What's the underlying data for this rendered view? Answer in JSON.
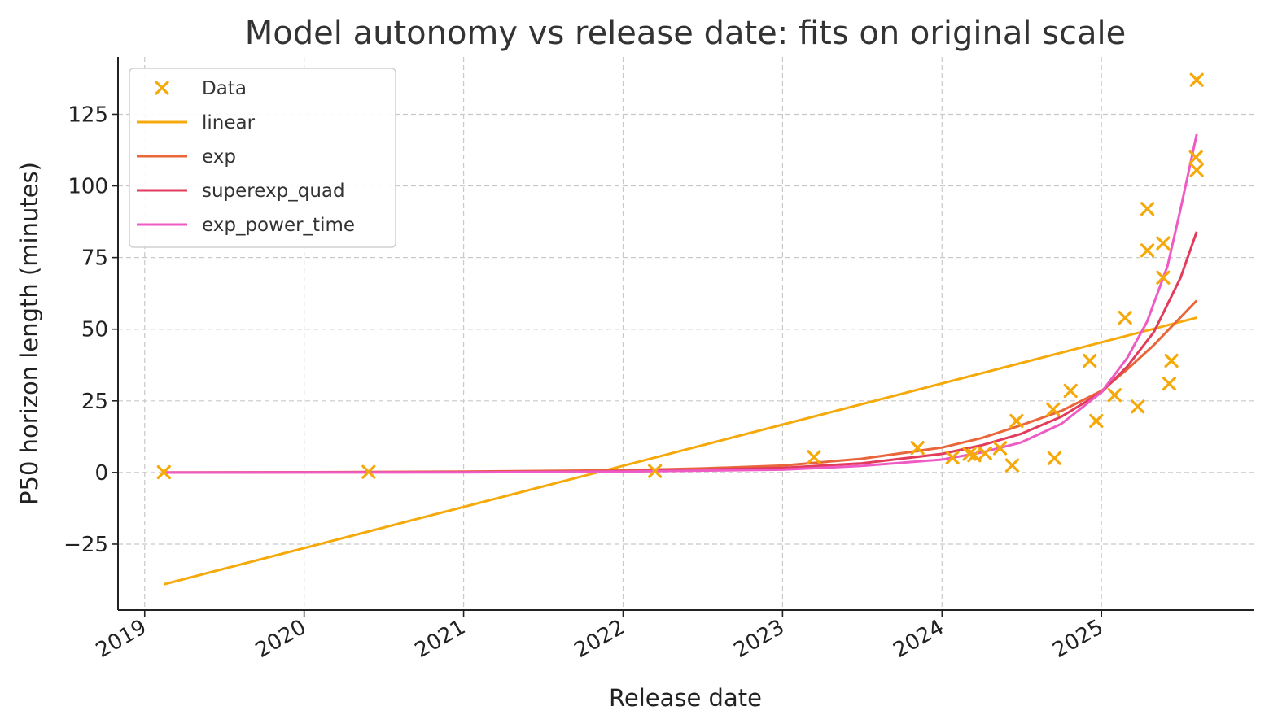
{
  "chart_data": {
    "type": "scatter",
    "title": "Model autonomy vs release date: fits on original scale",
    "xlabel": "Release date",
    "ylabel": "P50 horizon length (minutes)",
    "ylim": [
      -48,
      145
    ],
    "xlim": [
      "2018-11-01",
      "2025-12-15"
    ],
    "x_ticks": [
      {
        "date": "2019-01-01",
        "label": "2019"
      },
      {
        "date": "2020-01-01",
        "label": "2020"
      },
      {
        "date": "2021-01-01",
        "label": "2021"
      },
      {
        "date": "2022-01-01",
        "label": "2022"
      },
      {
        "date": "2023-01-01",
        "label": "2023"
      },
      {
        "date": "2024-01-01",
        "label": "2024"
      },
      {
        "date": "2025-01-01",
        "label": "2025"
      }
    ],
    "y_ticks": [
      {
        "value": -25,
        "label": "−25"
      },
      {
        "value": 0,
        "label": "0"
      },
      {
        "value": 25,
        "label": "25"
      },
      {
        "value": 50,
        "label": "50"
      },
      {
        "value": 75,
        "label": "75"
      },
      {
        "value": 100,
        "label": "100"
      },
      {
        "value": 125,
        "label": "125"
      }
    ],
    "grid": true,
    "legend_position": "top-left",
    "colors": {
      "Data": "#f5a90a",
      "linear": "#f5a90a",
      "exp": "#e8663a",
      "superexp_quad": "#e23c5c",
      "exp_power_time": "#ef5bc4"
    },
    "data_points": {
      "name": "Data",
      "x": [
        "2019-02-14",
        "2020-05-28",
        "2022-03-15",
        "2023-03-14",
        "2023-11-06",
        "2024-01-25",
        "2024-03-04",
        "2024-03-15",
        "2024-04-09",
        "2024-05-13",
        "2024-06-10",
        "2024-06-20",
        "2024-09-12",
        "2024-09-15",
        "2024-10-22",
        "2024-12-05",
        "2024-12-20",
        "2025-01-31",
        "2025-02-24",
        "2025-03-25",
        "2025-04-16",
        "2025-04-16",
        "2025-05-22",
        "2025-05-22",
        "2025-06-05",
        "2025-06-10",
        "2025-08-05",
        "2025-08-07",
        "2025-08-07"
      ],
      "y": [
        0.1,
        0.2,
        0.5,
        5.4,
        8.6,
        5.2,
        6.5,
        6.0,
        6.7,
        8.5,
        2.5,
        18.0,
        22.0,
        5.0,
        28.5,
        39.0,
        18.0,
        27.0,
        54.0,
        23.0,
        92.0,
        77.5,
        80.0,
        68.0,
        31.0,
        39.0,
        110.0,
        137.0,
        105.5
      ]
    },
    "series": [
      {
        "name": "linear",
        "x": [
          "2019-02-14",
          "2025-08-07"
        ],
        "y": [
          -39,
          54
        ]
      },
      {
        "name": "exp",
        "x": [
          "2019-02-14",
          "2020-01-01",
          "2021-01-01",
          "2022-01-01",
          "2022-07-01",
          "2023-01-01",
          "2023-07-01",
          "2024-01-01",
          "2024-04-01",
          "2024-07-01",
          "2024-10-01",
          "2025-01-01",
          "2025-03-01",
          "2025-05-01",
          "2025-08-07"
        ],
        "y": [
          0.0,
          0.1,
          0.3,
          0.8,
          1.4,
          2.4,
          4.8,
          8.7,
          12.0,
          16.5,
          21.5,
          28.5,
          36.0,
          44.5,
          60.0
        ]
      },
      {
        "name": "superexp_quad",
        "x": [
          "2019-02-14",
          "2021-01-01",
          "2022-01-01",
          "2023-01-01",
          "2023-07-01",
          "2024-01-01",
          "2024-04-01",
          "2024-07-01",
          "2024-10-01",
          "2025-01-01",
          "2025-03-01",
          "2025-05-01",
          "2025-07-01",
          "2025-08-07"
        ],
        "y": [
          0.0,
          0.1,
          0.4,
          1.6,
          3.2,
          6.5,
          9.5,
          13.5,
          19.5,
          28.0,
          37.0,
          49.0,
          68.0,
          84.0
        ]
      },
      {
        "name": "exp_power_time",
        "x": [
          "2019-02-14",
          "2021-01-01",
          "2022-01-01",
          "2023-01-01",
          "2023-07-01",
          "2024-01-01",
          "2024-04-01",
          "2024-07-01",
          "2024-10-01",
          "2025-01-01",
          "2025-03-01",
          "2025-04-15",
          "2025-06-01",
          "2025-07-01",
          "2025-08-07"
        ],
        "y": [
          0.0,
          0.05,
          0.3,
          1.0,
          2.3,
          4.5,
          7.0,
          10.5,
          17.0,
          28.0,
          40.0,
          52.5,
          72.0,
          92.0,
          118.0
        ]
      }
    ]
  }
}
